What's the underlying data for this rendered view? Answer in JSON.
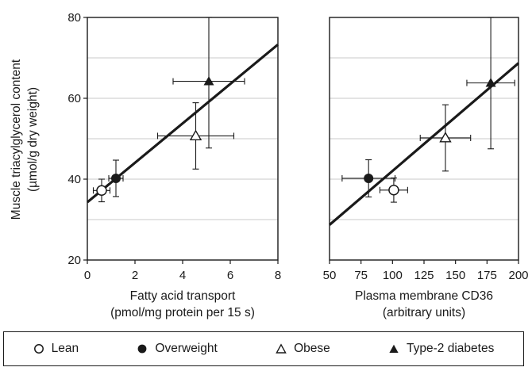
{
  "chart_data": [
    {
      "type": "scatter",
      "title": "",
      "xlabel": [
        "Fatty acid transport",
        "(pmol/mg protein per 15 s)"
      ],
      "ylabel": [
        "Muscle triacylglycerol content",
        "(µmol/g dry weight)"
      ],
      "xlim": [
        0,
        8
      ],
      "ylim": [
        20,
        80
      ],
      "xticks": [
        "0",
        "2",
        "4",
        "6",
        "8"
      ],
      "yticks": [
        "20",
        "40",
        "60",
        "80"
      ],
      "grid": true,
      "points": [
        {
          "group": "Lean",
          "x": 0.6,
          "y": 37.2,
          "xerr": 0.35,
          "yerr": 2.8
        },
        {
          "group": "Overweight",
          "x": 1.2,
          "y": 40.2,
          "xerr": 0.3,
          "yerr": 4.5
        },
        {
          "group": "Obese",
          "x": 4.55,
          "y": 50.7,
          "xerr": 1.6,
          "yerr": 8.2
        },
        {
          "group": "Type-2 diabetes",
          "x": 5.1,
          "y": 64.2,
          "xerr": 1.5,
          "yerr": 16.5
        }
      ],
      "fit_line": {
        "x": [
          0,
          8
        ],
        "y": [
          34.3,
          73.3
        ]
      }
    },
    {
      "type": "scatter",
      "title": "",
      "xlabel": [
        "Plasma membrane CD36",
        "(arbitrary units)"
      ],
      "ylabel": [],
      "xlim": [
        50,
        200
      ],
      "ylim": [
        20,
        80
      ],
      "xticks": [
        "50",
        "75",
        "100",
        "125",
        "150",
        "175",
        "200"
      ],
      "yticks": [],
      "grid": true,
      "points": [
        {
          "group": "Lean",
          "x": 101,
          "y": 37.3,
          "xerr": 11,
          "yerr": 3.0
        },
        {
          "group": "Overweight",
          "x": 81,
          "y": 40.2,
          "xerr": 21,
          "yerr": 4.6
        },
        {
          "group": "Obese",
          "x": 142,
          "y": 50.2,
          "xerr": 20,
          "yerr": 8.2
        },
        {
          "group": "Type-2 diabetes",
          "x": 178,
          "y": 63.8,
          "xerr": 19,
          "yerr": 16.3
        }
      ],
      "fit_line": {
        "x": [
          50,
          200
        ],
        "y": [
          28.7,
          68.7
        ]
      }
    }
  ],
  "legend": {
    "placement": "bottom",
    "items": [
      {
        "label": "Lean",
        "marker": "circle-open"
      },
      {
        "label": "Overweight",
        "marker": "circle-filled"
      },
      {
        "label": "Obese",
        "marker": "triangle-open"
      },
      {
        "label": "Type-2 diabetes",
        "marker": "triangle-filled"
      }
    ]
  }
}
